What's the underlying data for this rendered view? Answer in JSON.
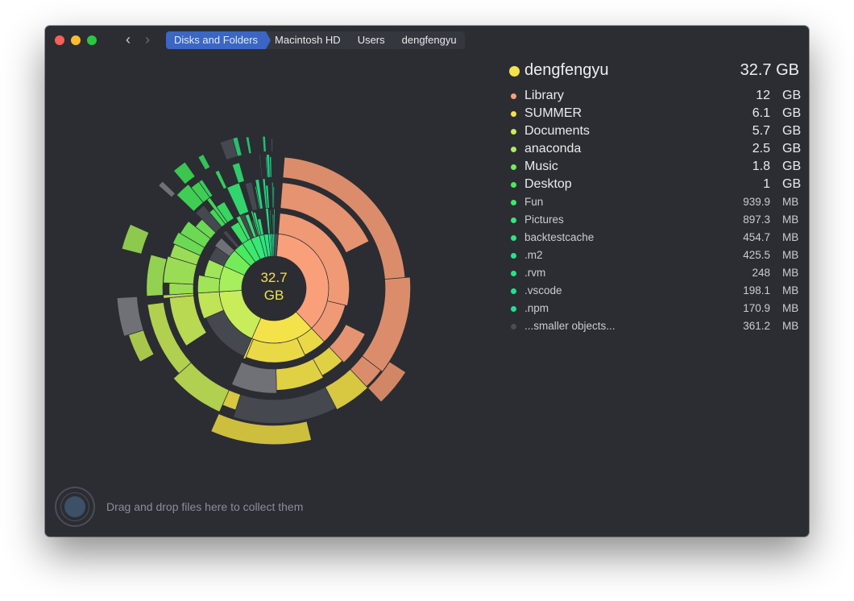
{
  "window": {
    "breadcrumbs": [
      "Disks and Folders",
      "Macintosh HD",
      "Users",
      "dengfengyu"
    ]
  },
  "chart": {
    "center_value": "32.7",
    "center_unit": "GB"
  },
  "summary": {
    "name": "dengfengyu",
    "size": "32.7 GB",
    "dot_color": "#f4e24a"
  },
  "items": [
    {
      "name": "Library",
      "num": "12",
      "unit": "GB",
      "color": "#f9a07a",
      "size": "big"
    },
    {
      "name": "SUMMER",
      "num": "6.1",
      "unit": "GB",
      "color": "#f4e24a",
      "size": "big"
    },
    {
      "name": "Documents",
      "num": "5.7",
      "unit": "GB",
      "color": "#c9ec5a",
      "size": "big"
    },
    {
      "name": "anaconda",
      "num": "2.5",
      "unit": "GB",
      "color": "#a7ef5c",
      "size": "big"
    },
    {
      "name": "Music",
      "num": "1.8",
      "unit": "GB",
      "color": "#74ec5a",
      "size": "big"
    },
    {
      "name": "Desktop",
      "num": "1",
      "unit": "GB",
      "color": "#48ea5e",
      "size": "big"
    },
    {
      "name": "Fun",
      "num": "939.9",
      "unit": "MB",
      "color": "#3ee86a",
      "size": "small"
    },
    {
      "name": "Pictures",
      "num": "897.3",
      "unit": "MB",
      "color": "#36e876",
      "size": "small"
    },
    {
      "name": "backtestcache",
      "num": "454.7",
      "unit": "MB",
      "color": "#2ee57e",
      "size": "small"
    },
    {
      "name": ".m2",
      "num": "425.5",
      "unit": "MB",
      "color": "#28e484",
      "size": "small"
    },
    {
      "name": ".rvm",
      "num": "248",
      "unit": "MB",
      "color": "#24e388",
      "size": "small"
    },
    {
      "name": ".vscode",
      "num": "198.1",
      "unit": "MB",
      "color": "#20e28c",
      "size": "small"
    },
    {
      "name": ".npm",
      "num": "170.9",
      "unit": "MB",
      "color": "#1ee290",
      "size": "small"
    },
    {
      "name": "...smaller objects...",
      "num": "361.2",
      "unit": "MB",
      "color": "#4a4d55",
      "size": "small"
    }
  ],
  "footer": {
    "drop_text": "Drag and drop files here to collect them"
  }
}
